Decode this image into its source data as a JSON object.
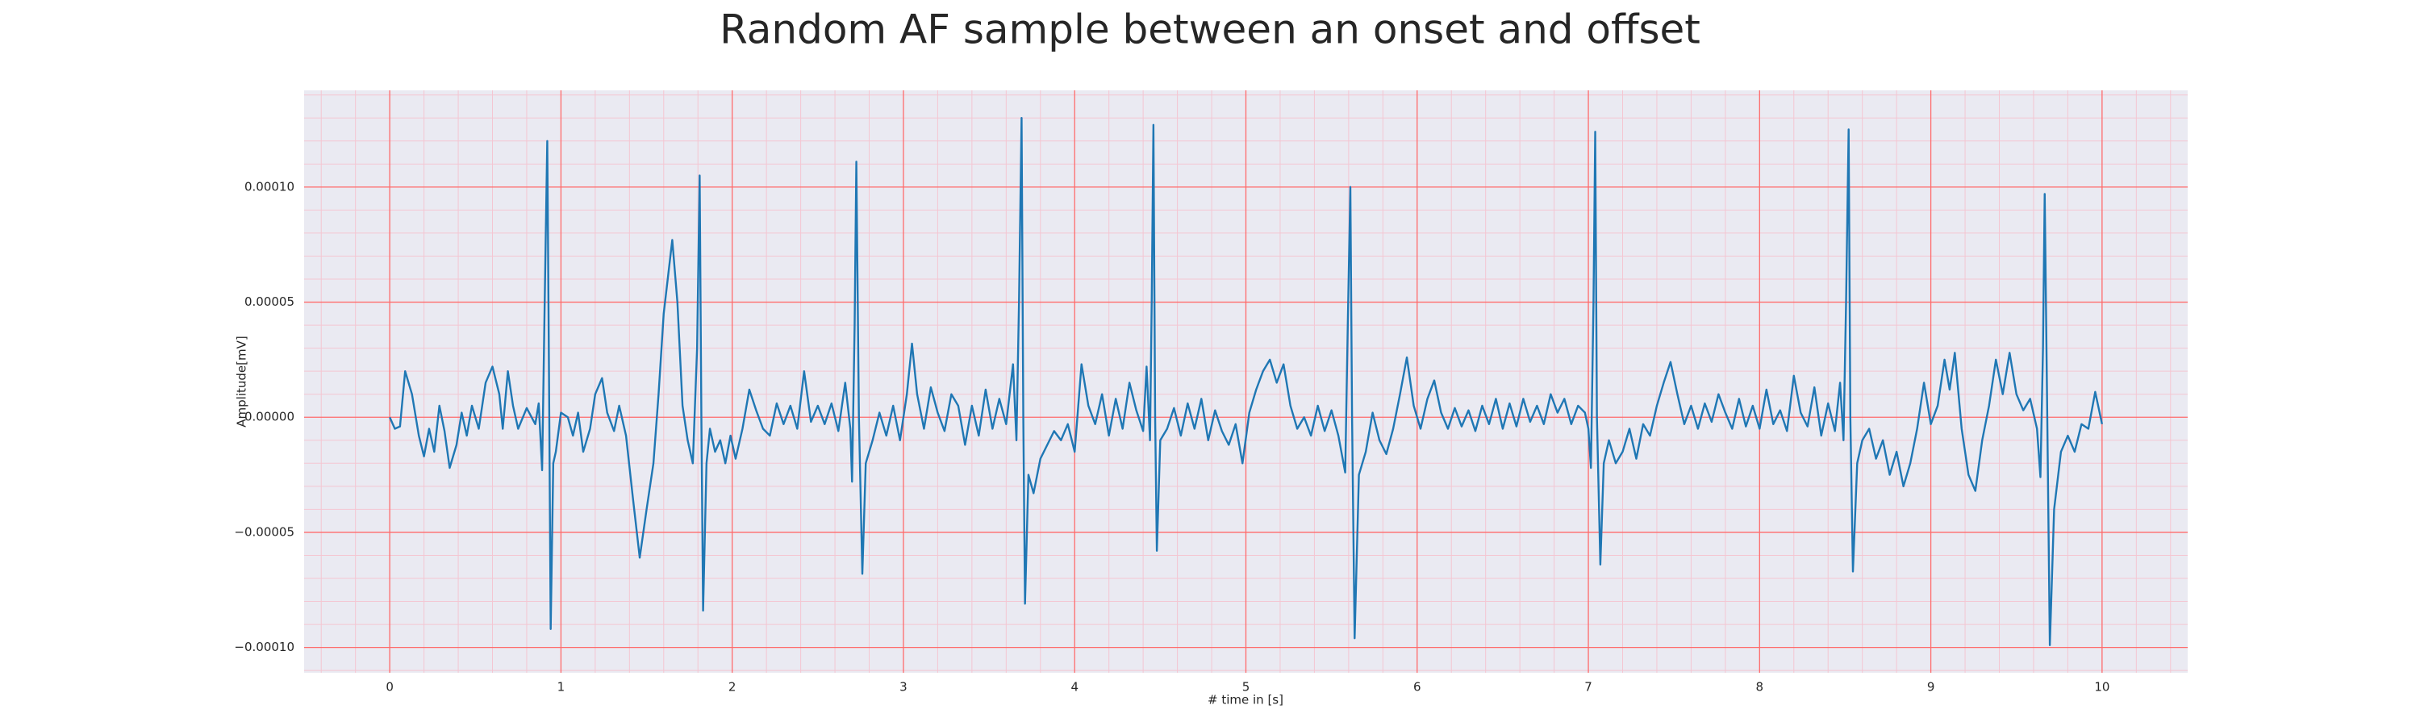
{
  "chart_data": {
    "type": "line",
    "title": "Random AF sample between an onset and offset",
    "xlabel": "# time in [s]",
    "ylabel": "Amplitude[mV]",
    "color": "#1f77b4",
    "grid": true,
    "grid_color": "#ff6b6b",
    "minor_grid": true,
    "minor_grid_color": "#f4c6d2",
    "xlim": [
      -0.5,
      10.5
    ],
    "xticks": [
      0,
      1,
      2,
      3,
      4,
      5,
      6,
      7,
      8,
      9,
      10
    ],
    "ylim": [
      -0.000111,
      0.000142
    ],
    "yticks": [
      {
        "value": -0.0001,
        "label": "−0.00010"
      },
      {
        "value": -5e-05,
        "label": "−0.00005"
      },
      {
        "value": 0,
        "label": "0.00000"
      },
      {
        "value": 5e-05,
        "label": "0.00005"
      },
      {
        "value": 0.0001,
        "label": "0.00010"
      }
    ],
    "x": [
      0,
      0.03,
      0.06,
      0.09,
      0.13,
      0.17,
      0.2,
      0.23,
      0.26,
      0.29,
      0.32,
      0.35,
      0.39,
      0.42,
      0.45,
      0.48,
      0.52,
      0.56,
      0.6,
      0.64,
      0.66,
      0.69,
      0.72,
      0.75,
      0.8,
      0.85,
      0.87,
      0.89,
      0.905,
      0.92,
      0.93,
      0.94,
      0.955,
      0.97,
      1.0,
      1.04,
      1.07,
      1.1,
      1.13,
      1.17,
      1.2,
      1.24,
      1.27,
      1.31,
      1.34,
      1.38,
      1.42,
      1.46,
      1.5,
      1.54,
      1.57,
      1.6,
      1.65,
      1.68,
      1.71,
      1.74,
      1.77,
      1.795,
      1.81,
      1.82,
      1.83,
      1.85,
      1.87,
      1.9,
      1.93,
      1.96,
      1.99,
      2.02,
      2.06,
      2.1,
      2.14,
      2.18,
      2.22,
      2.26,
      2.3,
      2.34,
      2.38,
      2.42,
      2.46,
      2.5,
      2.54,
      2.58,
      2.62,
      2.66,
      2.69,
      2.7,
      2.715,
      2.725,
      2.74,
      2.76,
      2.78,
      2.82,
      2.86,
      2.9,
      2.94,
      2.98,
      3.02,
      3.05,
      3.08,
      3.12,
      3.16,
      3.2,
      3.24,
      3.28,
      3.32,
      3.36,
      3.4,
      3.44,
      3.48,
      3.52,
      3.56,
      3.6,
      3.64,
      3.66,
      3.675,
      3.69,
      3.7,
      3.71,
      3.73,
      3.76,
      3.8,
      3.84,
      3.88,
      3.92,
      3.96,
      4.0,
      4.04,
      4.08,
      4.12,
      4.16,
      4.2,
      4.24,
      4.28,
      4.32,
      4.36,
      4.4,
      4.42,
      4.44,
      4.45,
      4.46,
      4.47,
      4.48,
      4.5,
      4.54,
      4.58,
      4.62,
      4.66,
      4.7,
      4.74,
      4.78,
      4.82,
      4.86,
      4.9,
      4.94,
      4.98,
      5.02,
      5.06,
      5.1,
      5.14,
      5.18,
      5.22,
      5.26,
      5.3,
      5.34,
      5.38,
      5.42,
      5.46,
      5.5,
      5.54,
      5.58,
      5.595,
      5.61,
      5.62,
      5.635,
      5.66,
      5.7,
      5.74,
      5.78,
      5.82,
      5.86,
      5.9,
      5.94,
      5.98,
      6.02,
      6.06,
      6.1,
      6.14,
      6.18,
      6.22,
      6.26,
      6.3,
      6.34,
      6.38,
      6.42,
      6.46,
      6.5,
      6.54,
      6.58,
      6.62,
      6.66,
      6.7,
      6.74,
      6.78,
      6.82,
      6.86,
      6.9,
      6.94,
      6.98,
      7.0,
      7.015,
      7.03,
      7.04,
      7.05,
      7.07,
      7.09,
      7.12,
      7.16,
      7.2,
      7.24,
      7.28,
      7.32,
      7.36,
      7.4,
      7.44,
      7.48,
      7.52,
      7.56,
      7.6,
      7.64,
      7.68,
      7.72,
      7.76,
      7.8,
      7.84,
      7.88,
      7.92,
      7.96,
      8.0,
      8.04,
      8.08,
      8.12,
      8.16,
      8.2,
      8.24,
      8.28,
      8.32,
      8.36,
      8.4,
      8.44,
      8.47,
      8.49,
      8.505,
      8.52,
      8.53,
      8.545,
      8.57,
      8.6,
      8.64,
      8.68,
      8.72,
      8.76,
      8.8,
      8.84,
      8.88,
      8.92,
      8.96,
      9.0,
      9.04,
      9.08,
      9.11,
      9.14,
      9.18,
      9.22,
      9.26,
      9.3,
      9.34,
      9.38,
      9.42,
      9.46,
      9.5,
      9.54,
      9.58,
      9.62,
      9.64,
      9.655,
      9.665,
      9.68,
      9.695,
      9.72,
      9.76,
      9.8,
      9.84,
      9.88,
      9.92,
      9.96,
      10.0
    ],
    "values": [
      0,
      -5e-06,
      -4e-06,
      2e-05,
      1e-05,
      -8e-06,
      -1.7e-05,
      -5e-06,
      -1.5e-05,
      5e-06,
      -6e-06,
      -2.2e-05,
      -1.2e-05,
      2e-06,
      -8e-06,
      5e-06,
      -5e-06,
      1.5e-05,
      2.2e-05,
      1e-05,
      -5e-06,
      2e-05,
      5e-06,
      -5e-06,
      4e-06,
      -3e-06,
      6e-06,
      -2.3e-05,
      5e-05,
      0.00012,
      2e-05,
      -9.2e-05,
      -2e-05,
      -1.5e-05,
      2e-06,
      0,
      -8e-06,
      2e-06,
      -1.5e-05,
      -5e-06,
      1e-05,
      1.7e-05,
      2e-06,
      -6e-06,
      5e-06,
      -8e-06,
      -3.5e-05,
      -6.1e-05,
      -4e-05,
      -2e-05,
      1e-05,
      4.5e-05,
      7.7e-05,
      5e-05,
      5e-06,
      -1e-05,
      -2e-05,
      3e-05,
      0.000105,
      0,
      -8.4e-05,
      -2e-05,
      -5e-06,
      -1.5e-05,
      -1e-05,
      -2e-05,
      -8e-06,
      -1.8e-05,
      -5e-06,
      1.2e-05,
      3e-06,
      -5e-06,
      -8e-06,
      6e-06,
      -3e-06,
      5e-06,
      -5e-06,
      2e-05,
      -2e-06,
      5e-06,
      -3e-06,
      6e-06,
      -6e-06,
      1.5e-05,
      -5e-06,
      -2.8e-05,
      4e-05,
      0.000111,
      0,
      -6.8e-05,
      -2e-05,
      -1e-05,
      2e-06,
      -8e-06,
      5e-06,
      -1e-05,
      1e-05,
      3.2e-05,
      1e-05,
      -5e-06,
      1.3e-05,
      2e-06,
      -6e-06,
      1e-05,
      5e-06,
      -1.2e-05,
      5e-06,
      -8e-06,
      1.2e-05,
      -5e-06,
      8e-06,
      -3e-06,
      2.3e-05,
      -1e-05,
      5e-05,
      0.00013,
      0,
      -8.1e-05,
      -2.5e-05,
      -3.3e-05,
      -1.8e-05,
      -1.2e-05,
      -6e-06,
      -1e-05,
      -3e-06,
      -1.5e-05,
      2.3e-05,
      5e-06,
      -3e-06,
      1e-05,
      -8e-06,
      8e-06,
      -5e-06,
      1.5e-05,
      3e-06,
      -6e-06,
      2.2e-05,
      -1e-05,
      5e-05,
      0.000127,
      0,
      -5.8e-05,
      -1e-05,
      -5e-06,
      4e-06,
      -8e-06,
      6e-06,
      -5e-06,
      8e-06,
      -1e-05,
      3e-06,
      -6e-06,
      -1.2e-05,
      -3e-06,
      -2e-05,
      2e-06,
      1.2e-05,
      2e-05,
      2.5e-05,
      1.5e-05,
      2.3e-05,
      5e-06,
      -5e-06,
      0,
      -8e-06,
      5e-06,
      -6e-06,
      3e-06,
      -8e-06,
      -2.4e-05,
      4e-05,
      0.0001,
      0,
      -9.6e-05,
      -2.5e-05,
      -1.5e-05,
      2e-06,
      -1e-05,
      -1.6e-05,
      -5e-06,
      1e-05,
      2.6e-05,
      5e-06,
      -5e-06,
      8e-06,
      1.6e-05,
      2e-06,
      -5e-06,
      4e-06,
      -4e-06,
      3e-06,
      -6e-06,
      5e-06,
      -3e-06,
      8e-06,
      -5e-06,
      6e-06,
      -4e-06,
      8e-06,
      -2e-06,
      5e-06,
      -3e-06,
      1e-05,
      2e-06,
      8e-06,
      -3e-06,
      5e-06,
      2e-06,
      -5e-06,
      -2.2e-05,
      5e-05,
      0.000124,
      0,
      -6.4e-05,
      -2e-05,
      -1e-05,
      -2e-05,
      -1.5e-05,
      -5e-06,
      -1.8e-05,
      -3e-06,
      -8e-06,
      5e-06,
      1.5e-05,
      2.4e-05,
      1e-05,
      -3e-06,
      5e-06,
      -5e-06,
      6e-06,
      -2e-06,
      1e-05,
      2e-06,
      -5e-06,
      8e-06,
      -4e-06,
      5e-06,
      -5e-06,
      1.2e-05,
      -3e-06,
      3e-06,
      -6e-06,
      1.8e-05,
      2e-06,
      -4e-06,
      1.3e-05,
      -8e-06,
      6e-06,
      -6e-06,
      1.5e-05,
      -1e-05,
      5e-05,
      0.000125,
      0,
      -6.7e-05,
      -2e-05,
      -1e-05,
      -5e-06,
      -1.8e-05,
      -1e-05,
      -2.5e-05,
      -1.5e-05,
      -3e-05,
      -2e-05,
      -5e-06,
      1.5e-05,
      -3e-06,
      5e-06,
      2.5e-05,
      1.2e-05,
      2.8e-05,
      -5e-06,
      -2.5e-05,
      -3.2e-05,
      -1e-05,
      5e-06,
      2.5e-05,
      1e-05,
      2.8e-05,
      1e-05,
      3e-06,
      8e-06,
      -5e-06,
      -2.6e-05,
      3e-05,
      9.7e-05,
      0,
      -9.9e-05,
      -4e-05,
      -1.5e-05,
      -8e-06,
      -1.5e-05,
      -3e-06,
      -5e-06,
      1.1e-05,
      -3e-06
    ]
  }
}
